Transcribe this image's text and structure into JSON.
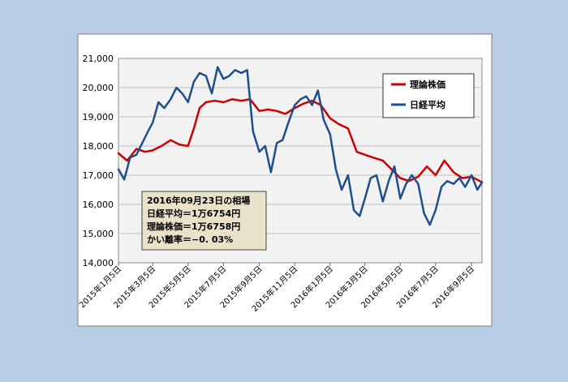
{
  "colors": {
    "page_bg": "#b8cde3",
    "chart_bg": "#ffffff",
    "plot_bg": "#f2f2f2",
    "grid": "#c0c0c0",
    "theory": "#cc0000",
    "nikkei": "#1f4e8c",
    "annotation_bg": "#e9e1c8"
  },
  "annotation": {
    "line1": "2016年09月23日の相場",
    "line2": "日経平均＝1万6754円",
    "line3": "理論株価＝1万6758円",
    "line4": "かい離率＝−0. 03%"
  },
  "chart_data": {
    "type": "line",
    "title": "",
    "xlabel": "",
    "ylabel": "",
    "ylim": [
      14000,
      21000
    ],
    "yticks": [
      14000,
      15000,
      16000,
      17000,
      18000,
      19000,
      20000,
      21000
    ],
    "ytick_labels": [
      "14,000",
      "15,000",
      "16,000",
      "17,000",
      "18,000",
      "19,000",
      "20,000",
      "21,000"
    ],
    "xlim": [
      "2015-01-05",
      "2016-09-23"
    ],
    "xticks": [
      "2015-01-05",
      "2015-03-05",
      "2015-05-05",
      "2015-07-05",
      "2015-09-05",
      "2015-11-05",
      "2016-01-05",
      "2016-03-05",
      "2016-05-05",
      "2016-07-05",
      "2016-09-05"
    ],
    "xtick_labels": [
      "2015年1月5日",
      "2015年3月5日",
      "2015年5月5日",
      "2015年7月5日",
      "2015年9月5日",
      "2015年11月5日",
      "2016年1月5日",
      "2016年3月5日",
      "2016年5月5日",
      "2016年7月5日",
      "2016年9月5日"
    ],
    "grid": true,
    "legend_position": "top-right",
    "series": [
      {
        "name": "理論株価",
        "color": "#cc0000",
        "x": [
          "2015-01-05",
          "2015-01-20",
          "2015-02-05",
          "2015-02-20",
          "2015-03-05",
          "2015-03-20",
          "2015-04-05",
          "2015-04-20",
          "2015-05-05",
          "2015-05-15",
          "2015-05-25",
          "2015-06-05",
          "2015-06-20",
          "2015-07-05",
          "2015-07-20",
          "2015-08-05",
          "2015-08-20",
          "2015-09-05",
          "2015-09-20",
          "2015-10-05",
          "2015-10-20",
          "2015-11-05",
          "2015-11-20",
          "2015-12-05",
          "2015-12-20",
          "2016-01-05",
          "2016-01-20",
          "2016-02-05",
          "2016-02-20",
          "2016-03-05",
          "2016-03-20",
          "2016-04-05",
          "2016-04-20",
          "2016-05-05",
          "2016-05-20",
          "2016-06-05",
          "2016-06-20",
          "2016-07-05",
          "2016-07-20",
          "2016-08-05",
          "2016-08-20",
          "2016-09-05",
          "2016-09-23"
        ],
        "values": [
          17750,
          17500,
          17900,
          17800,
          17850,
          18000,
          18200,
          18050,
          18000,
          18600,
          19300,
          19500,
          19550,
          19500,
          19600,
          19550,
          19600,
          19200,
          19250,
          19200,
          19100,
          19300,
          19450,
          19550,
          19400,
          18950,
          18750,
          18600,
          17800,
          17700,
          17600,
          17500,
          17200,
          16900,
          16800,
          16950,
          17300,
          17000,
          17500,
          17100,
          16900,
          16950,
          16758
        ]
      },
      {
        "name": "日経平均",
        "color": "#1f4e8c",
        "x": [
          "2015-01-05",
          "2015-01-15",
          "2015-01-25",
          "2015-02-05",
          "2015-02-15",
          "2015-02-25",
          "2015-03-05",
          "2015-03-15",
          "2015-03-25",
          "2015-04-05",
          "2015-04-15",
          "2015-04-25",
          "2015-05-05",
          "2015-05-15",
          "2015-05-25",
          "2015-06-05",
          "2015-06-15",
          "2015-06-25",
          "2015-07-05",
          "2015-07-15",
          "2015-07-25",
          "2015-08-05",
          "2015-08-15",
          "2015-08-25",
          "2015-09-05",
          "2015-09-15",
          "2015-09-25",
          "2015-10-05",
          "2015-10-15",
          "2015-10-25",
          "2015-11-05",
          "2015-11-15",
          "2015-11-25",
          "2015-12-05",
          "2015-12-15",
          "2015-12-25",
          "2016-01-05",
          "2016-01-15",
          "2016-01-25",
          "2016-02-05",
          "2016-02-15",
          "2016-02-25",
          "2016-03-05",
          "2016-03-15",
          "2016-03-25",
          "2016-04-05",
          "2016-04-15",
          "2016-04-25",
          "2016-05-05",
          "2016-05-15",
          "2016-05-25",
          "2016-06-05",
          "2016-06-15",
          "2016-06-25",
          "2016-07-05",
          "2016-07-15",
          "2016-07-25",
          "2016-08-05",
          "2016-08-15",
          "2016-08-25",
          "2016-09-05",
          "2016-09-15",
          "2016-09-23"
        ],
        "values": [
          17200,
          16850,
          17600,
          17700,
          18100,
          18500,
          18800,
          19500,
          19300,
          19600,
          20000,
          19800,
          19500,
          20200,
          20500,
          20400,
          19800,
          20700,
          20300,
          20400,
          20600,
          20500,
          20600,
          18500,
          17800,
          18000,
          17100,
          18100,
          18200,
          18800,
          19400,
          19600,
          19700,
          19400,
          19900,
          18900,
          18400,
          17200,
          16500,
          17000,
          15800,
          15600,
          16200,
          16900,
          17000,
          16100,
          16800,
          17300,
          16200,
          16700,
          17000,
          16700,
          15700,
          15300,
          15800,
          16600,
          16800,
          16700,
          16900,
          16600,
          17000,
          16500,
          16754
        ]
      }
    ]
  }
}
